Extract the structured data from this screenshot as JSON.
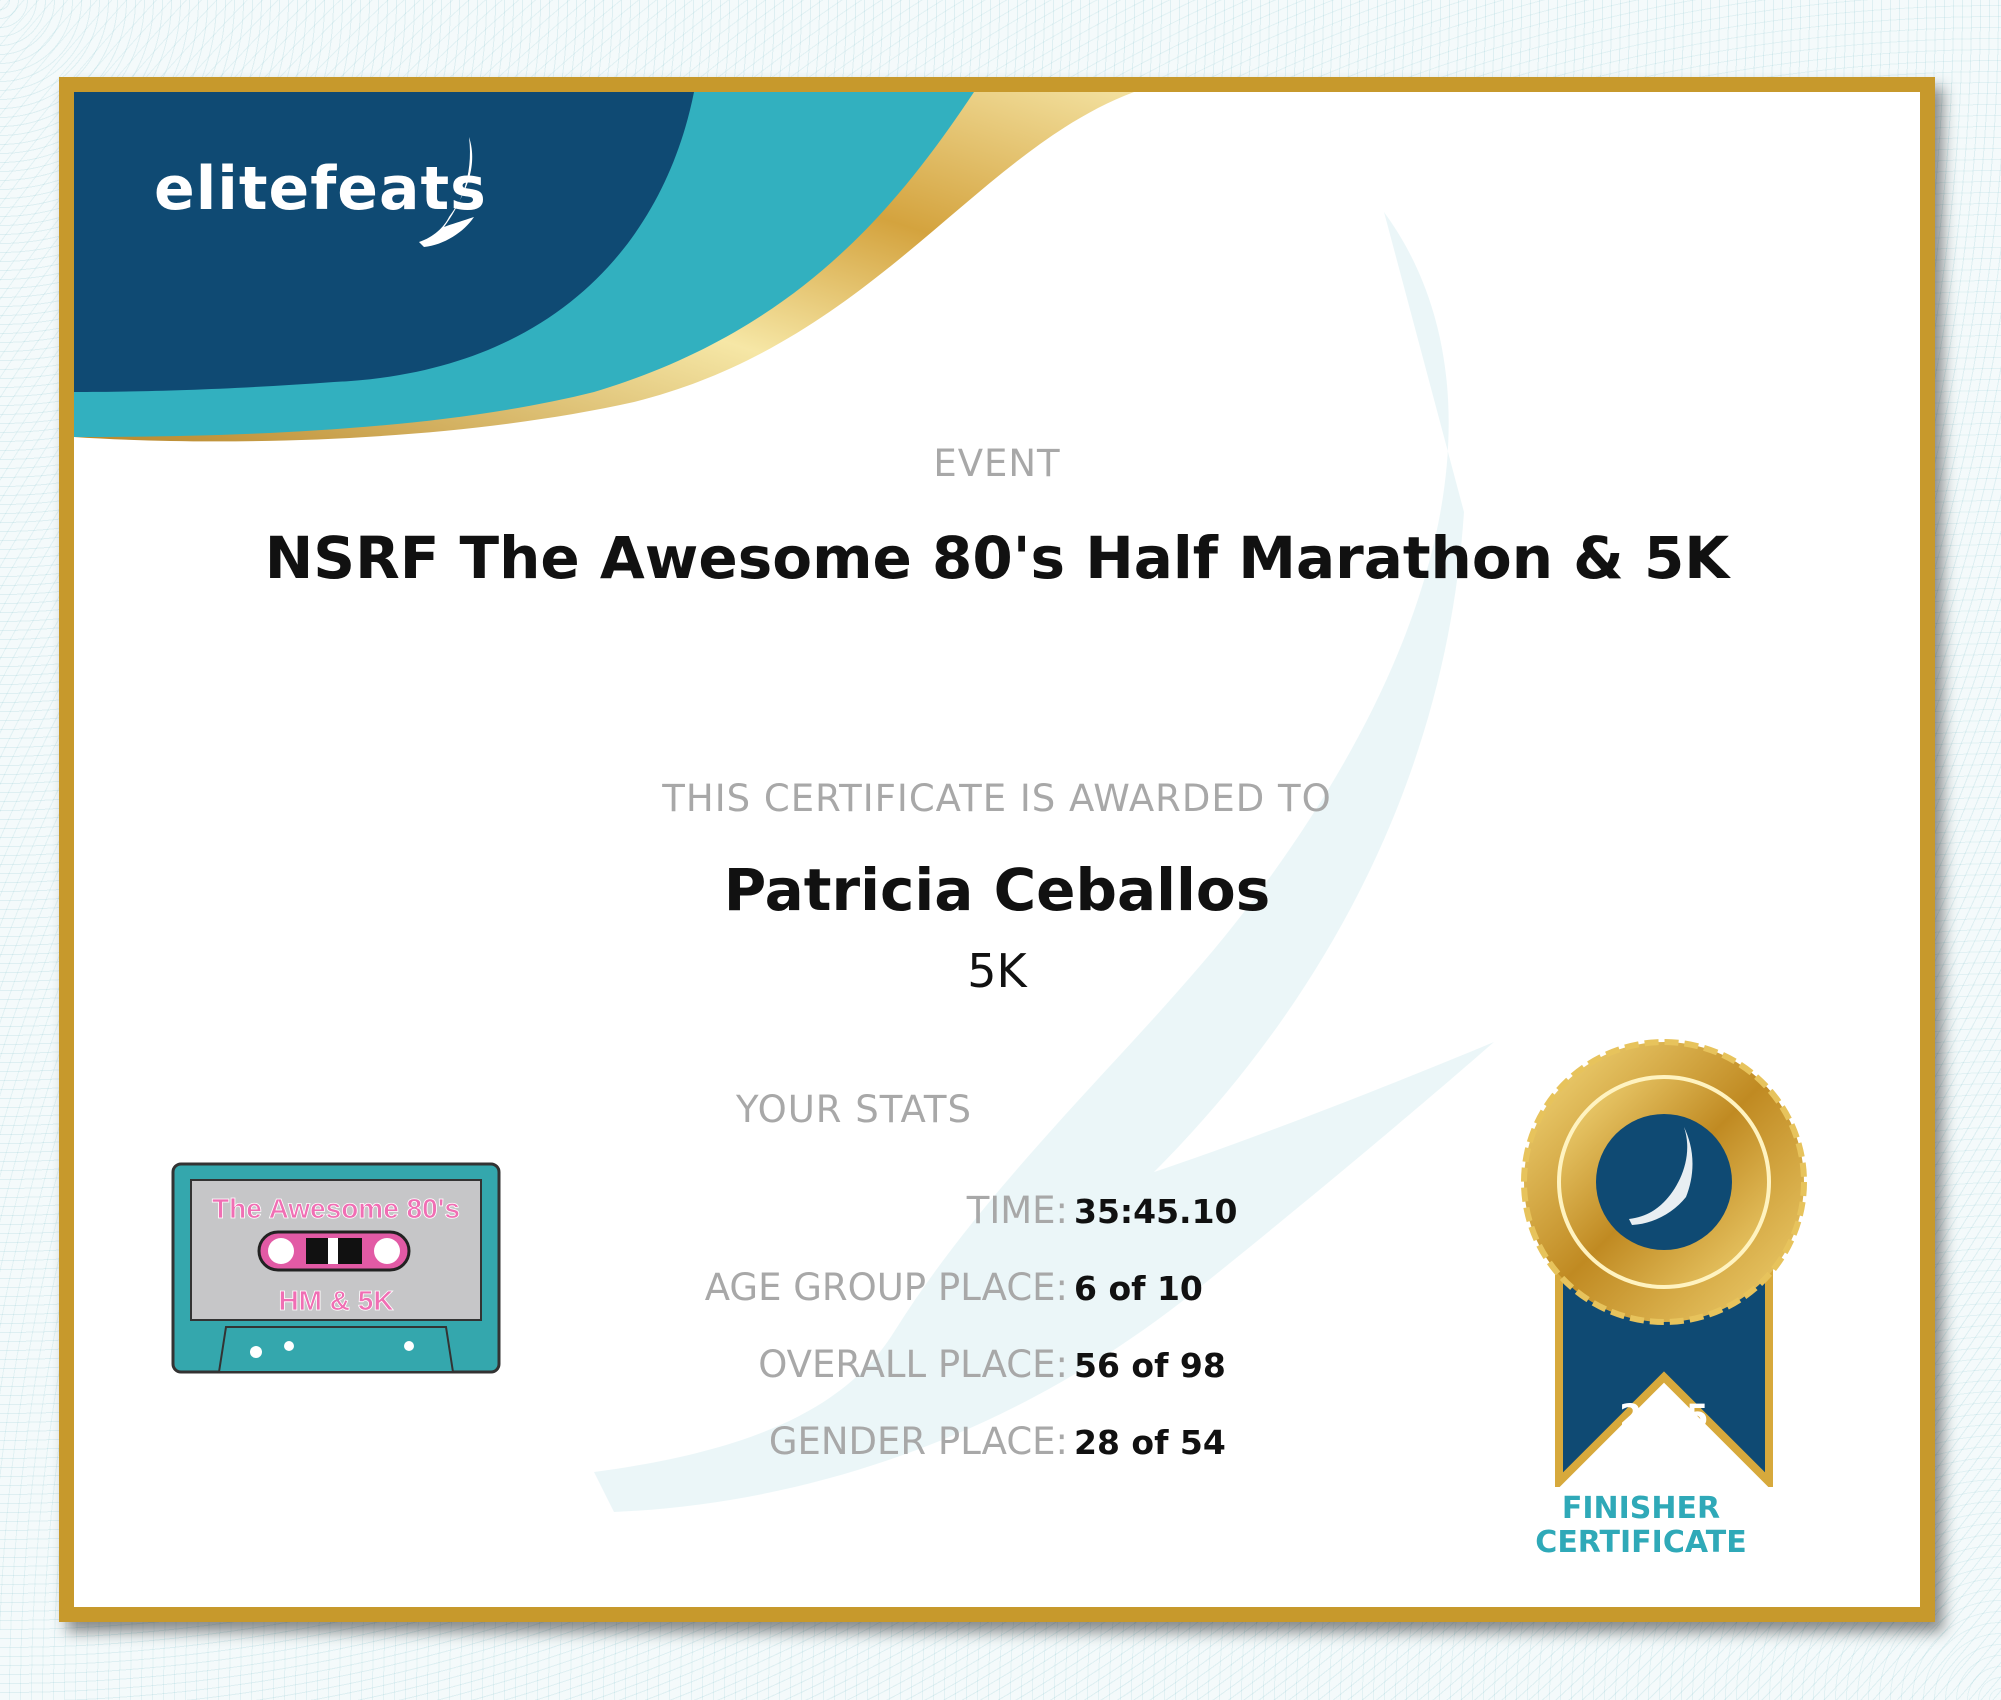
{
  "brand": {
    "logo_text": "elitefeats"
  },
  "colors": {
    "gold": "#c7992c",
    "navy": "#0f4a73",
    "teal": "#32b0bf",
    "label_gray": "#a8a8a8"
  },
  "event": {
    "label": "EVENT",
    "name": "NSRF The Awesome 80's Half Marathon & 5K"
  },
  "award": {
    "label": "THIS CERTIFICATE IS AWARDED TO",
    "name": "Patricia Ceballos",
    "distance": "5K"
  },
  "stats": {
    "label": "YOUR STATS",
    "rows": [
      {
        "label": "TIME:",
        "value": "35:45.10"
      },
      {
        "label": "AGE GROUP PLACE:",
        "value": "6 of 10"
      },
      {
        "label": "OVERALL PLACE:",
        "value": "56 of 98"
      },
      {
        "label": "GENDER PLACE:",
        "value": "28 of 54"
      }
    ]
  },
  "event_logo": {
    "line1": "The Awesome 80's",
    "line2": "HM & 5K"
  },
  "medal": {
    "year": "2025",
    "line1": "FINISHER",
    "line2": "CERTIFICATE"
  }
}
